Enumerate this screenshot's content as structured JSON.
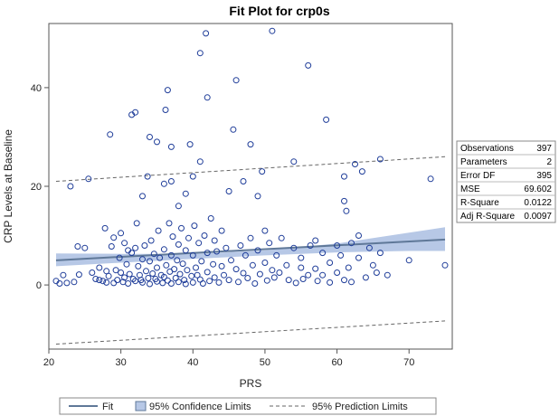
{
  "chart_data": {
    "type": "scatter",
    "title": "Fit Plot for crp0s",
    "xlabel": "PRS",
    "ylabel": "CRP Levels at Baseline",
    "xlim": [
      20,
      76
    ],
    "ylim": [
      -13,
      53
    ],
    "xticks": [
      20,
      30,
      40,
      50,
      60,
      70
    ],
    "yticks": [
      0,
      20,
      40
    ],
    "grid": false,
    "fit": {
      "x": [
        21,
        75
      ],
      "y": [
        5.0,
        9.2
      ]
    },
    "confidence_band": {
      "x": [
        21,
        30,
        40,
        50,
        60,
        70,
        75
      ],
      "lower": [
        3.8,
        4.5,
        5.3,
        6.0,
        6.6,
        6.9,
        6.9
      ],
      "upper": [
        6.4,
        6.3,
        6.3,
        7.0,
        8.4,
        10.6,
        11.7
      ]
    },
    "prediction_band": {
      "x": [
        21,
        75
      ],
      "lower": [
        -12.0,
        -7.3
      ],
      "upper": [
        21.0,
        26.0
      ]
    },
    "fit_stats": [
      {
        "label": "Observations",
        "value": "397"
      },
      {
        "label": "Parameters",
        "value": "2"
      },
      {
        "label": "Error DF",
        "value": "395"
      },
      {
        "label": "MSE",
        "value": "69.602"
      },
      {
        "label": "R-Square",
        "value": "0.0122"
      },
      {
        "label": "Adj R-Square",
        "value": "0.0097"
      }
    ],
    "legend": {
      "placement": "bottom",
      "entries": [
        {
          "kind": "line",
          "label": "Fit"
        },
        {
          "kind": "band",
          "label": "95% Confidence Limits"
        },
        {
          "kind": "dashed",
          "label": "95% Prediction Limits"
        }
      ]
    },
    "points": [
      [
        21,
        0.8
      ],
      [
        21.5,
        0.3
      ],
      [
        22,
        2
      ],
      [
        22.5,
        0.4
      ],
      [
        23,
        20
      ],
      [
        23.5,
        0.6
      ],
      [
        24,
        7.8
      ],
      [
        24.2,
        2.1
      ],
      [
        25,
        7.5
      ],
      [
        25.5,
        21.5
      ],
      [
        26,
        2.5
      ],
      [
        26.5,
        1.2
      ],
      [
        27,
        3.5
      ],
      [
        27,
        1.0
      ],
      [
        27.5,
        0.8
      ],
      [
        27.8,
        11.5
      ],
      [
        28,
        0.5
      ],
      [
        28,
        2.8
      ],
      [
        28.3,
        1.8
      ],
      [
        28.5,
        30.5
      ],
      [
        28.7,
        7.8
      ],
      [
        29,
        9.6
      ],
      [
        29,
        0.4
      ],
      [
        29.3,
        3.0
      ],
      [
        29.5,
        1.0
      ],
      [
        29.8,
        5.5
      ],
      [
        30,
        10.5
      ],
      [
        30,
        2.5
      ],
      [
        30.3,
        0.6
      ],
      [
        30.5,
        8.5
      ],
      [
        30.5,
        1.5
      ],
      [
        30.8,
        4.2
      ],
      [
        31,
        7.0
      ],
      [
        31,
        0.3
      ],
      [
        31.2,
        2.2
      ],
      [
        31.5,
        34.5
      ],
      [
        31.5,
        6.5
      ],
      [
        31.7,
        1.2
      ],
      [
        32,
        35
      ],
      [
        32,
        7.5
      ],
      [
        32,
        0.8
      ],
      [
        32.2,
        12.5
      ],
      [
        32.4,
        3.8
      ],
      [
        32.6,
        2.0
      ],
      [
        32.8,
        1.0
      ],
      [
        33,
        18
      ],
      [
        33,
        5.2
      ],
      [
        33,
        0.5
      ],
      [
        33.3,
        8.0
      ],
      [
        33.5,
        2.8
      ],
      [
        33.7,
        22
      ],
      [
        33.8,
        1.4
      ],
      [
        34,
        30
      ],
      [
        34,
        4.8
      ],
      [
        34,
        0.2
      ],
      [
        34.2,
        9.0
      ],
      [
        34.4,
        2.3
      ],
      [
        34.6,
        6.3
      ],
      [
        34.8,
        1.2
      ],
      [
        35,
        29
      ],
      [
        35,
        3.5
      ],
      [
        35,
        0.7
      ],
      [
        35.2,
        11.0
      ],
      [
        35.4,
        5.5
      ],
      [
        35.6,
        2.0
      ],
      [
        35.8,
        0.4
      ],
      [
        36,
        20.5
      ],
      [
        36,
        7.2
      ],
      [
        36,
        1.6
      ],
      [
        36.2,
        35.5
      ],
      [
        36.3,
        4.0
      ],
      [
        36.5,
        39.5
      ],
      [
        36.5,
        0.9
      ],
      [
        36.7,
        12.5
      ],
      [
        36.8,
        2.7
      ],
      [
        37,
        28
      ],
      [
        37,
        21
      ],
      [
        37,
        6.0
      ],
      [
        37,
        0.3
      ],
      [
        37.2,
        9.8
      ],
      [
        37.4,
        3.2
      ],
      [
        37.6,
        1.4
      ],
      [
        37.8,
        5.0
      ],
      [
        38,
        16
      ],
      [
        38,
        8.2
      ],
      [
        38,
        0.6
      ],
      [
        38.2,
        2.2
      ],
      [
        38.4,
        11.5
      ],
      [
        38.6,
        4.3
      ],
      [
        38.8,
        1.0
      ],
      [
        39,
        18.5
      ],
      [
        39,
        7.0
      ],
      [
        39,
        0.2
      ],
      [
        39.2,
        3.0
      ],
      [
        39.4,
        9.5
      ],
      [
        39.6,
        28.5
      ],
      [
        39.8,
        1.8
      ],
      [
        40,
        22
      ],
      [
        40,
        6.0
      ],
      [
        40,
        0.5
      ],
      [
        40.2,
        12
      ],
      [
        40.4,
        3.5
      ],
      [
        40.6,
        2.0
      ],
      [
        40.8,
        8.5
      ],
      [
        41,
        47
      ],
      [
        41,
        25
      ],
      [
        41,
        1.1
      ],
      [
        41.2,
        4.8
      ],
      [
        41.4,
        0.3
      ],
      [
        41.6,
        10.0
      ],
      [
        41.8,
        51
      ],
      [
        42,
        38
      ],
      [
        42,
        6.5
      ],
      [
        42,
        2.6
      ],
      [
        42.3,
        0.8
      ],
      [
        42.5,
        13.5
      ],
      [
        42.8,
        4.2
      ],
      [
        43,
        9.0
      ],
      [
        43,
        1.5
      ],
      [
        43.3,
        6.8
      ],
      [
        43.6,
        0.5
      ],
      [
        44,
        3.8
      ],
      [
        44,
        11
      ],
      [
        44.3,
        2.0
      ],
      [
        44.6,
        7.5
      ],
      [
        45,
        19
      ],
      [
        45,
        1.0
      ],
      [
        45.3,
        5.0
      ],
      [
        45.6,
        31.5
      ],
      [
        46,
        41.5
      ],
      [
        46,
        3.2
      ],
      [
        46.3,
        0.6
      ],
      [
        46.6,
        8.0
      ],
      [
        47,
        21
      ],
      [
        47,
        2.4
      ],
      [
        47.3,
        6.0
      ],
      [
        47.6,
        1.4
      ],
      [
        48,
        28.5
      ],
      [
        48,
        9.5
      ],
      [
        48.3,
        4.0
      ],
      [
        48.6,
        0.3
      ],
      [
        49,
        18
      ],
      [
        49,
        7.0
      ],
      [
        49.3,
        2.2
      ],
      [
        49.6,
        23
      ],
      [
        50,
        11
      ],
      [
        50,
        4.5
      ],
      [
        50.3,
        0.9
      ],
      [
        50.6,
        8.5
      ],
      [
        51,
        51.5
      ],
      [
        51,
        3.0
      ],
      [
        51.3,
        1.5
      ],
      [
        51.6,
        6.0
      ],
      [
        52,
        2.5
      ],
      [
        52.3,
        9.5
      ],
      [
        53,
        4.0
      ],
      [
        53.3,
        1.0
      ],
      [
        54,
        25
      ],
      [
        54,
        7.5
      ],
      [
        54.3,
        0.4
      ],
      [
        55,
        3.5
      ],
      [
        55,
        5.5
      ],
      [
        55.3,
        1.2
      ],
      [
        56,
        44.5
      ],
      [
        56,
        2.0
      ],
      [
        56.3,
        8.0
      ],
      [
        57,
        9.0
      ],
      [
        57,
        3.3
      ],
      [
        57.3,
        0.8
      ],
      [
        58,
        6.5
      ],
      [
        58,
        2.0
      ],
      [
        58.5,
        33.5
      ],
      [
        59,
        4.5
      ],
      [
        59,
        0.5
      ],
      [
        60,
        8.0
      ],
      [
        60,
        2.5
      ],
      [
        60.5,
        6.0
      ],
      [
        61,
        22
      ],
      [
        61,
        17
      ],
      [
        61,
        1.0
      ],
      [
        61.3,
        15
      ],
      [
        61.6,
        3.5
      ],
      [
        62,
        8.5
      ],
      [
        62,
        0.6
      ],
      [
        62.5,
        24.5
      ],
      [
        63,
        10
      ],
      [
        63,
        5.5
      ],
      [
        63.5,
        23
      ],
      [
        64,
        1.5
      ],
      [
        64.5,
        7.5
      ],
      [
        65,
        4.0
      ],
      [
        65.5,
        2.5
      ],
      [
        66,
        25.5
      ],
      [
        66,
        6.5
      ],
      [
        67,
        2.0
      ],
      [
        70,
        5.0
      ],
      [
        73,
        21.5
      ],
      [
        75,
        4.0
      ]
    ]
  }
}
